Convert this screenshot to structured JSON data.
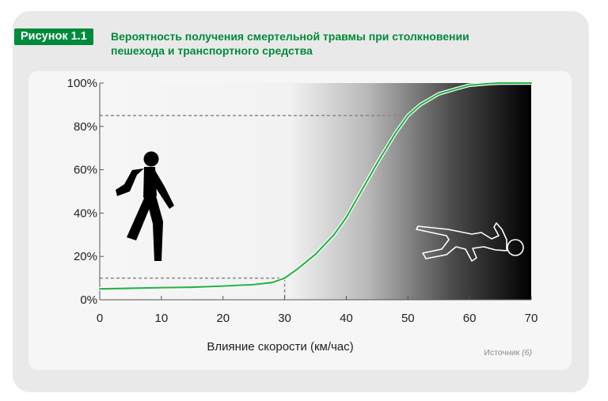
{
  "figure": {
    "tag": "Рисунок 1.1",
    "title_line1": "Вероятность получения смертельной травмы при столкновении",
    "title_line2": "пешехода и транспортного средства"
  },
  "source": {
    "label": "Источник",
    "ref": "(6)"
  },
  "icons": [
    "walking-pedestrian-icon",
    "fallen-body-outline-icon"
  ],
  "colors": {
    "brand_green": "#008a3c",
    "curve_green": "#2bb34a",
    "panel_bg": "#e9e9e9",
    "gradient_start": "#f6f6f6",
    "gradient_end": "#000000"
  },
  "chart_data": {
    "type": "line",
    "xlabel": "Влияние скорости (км/час)",
    "ylabel": "",
    "xlim": [
      0,
      70
    ],
    "ylim": [
      0,
      100
    ],
    "xticks": [
      "0",
      "10",
      "20",
      "30",
      "40",
      "50",
      "60",
      "70"
    ],
    "yticks": [
      "0%",
      "20%",
      "40%",
      "60%",
      "80%",
      "100%"
    ],
    "series": [
      {
        "x": [
          0,
          5,
          10,
          15,
          20,
          25,
          28,
          30,
          32,
          35,
          38,
          40,
          42,
          45,
          48,
          50,
          52,
          55,
          58,
          60,
          63,
          65,
          70
        ],
        "y": [
          5,
          5.3,
          5.6,
          5.8,
          6.3,
          7,
          8,
          10,
          14,
          21,
          30,
          38,
          48,
          63,
          77,
          85,
          90,
          95,
          97.5,
          99,
          99.7,
          100,
          100
        ]
      }
    ],
    "reference_points": [
      {
        "x": 30,
        "y": 10
      },
      {
        "x": 50,
        "y": 85
      }
    ],
    "grid": false,
    "background": "horizontal gradient from light gray at 30 km/h to black at 70 km/h"
  }
}
